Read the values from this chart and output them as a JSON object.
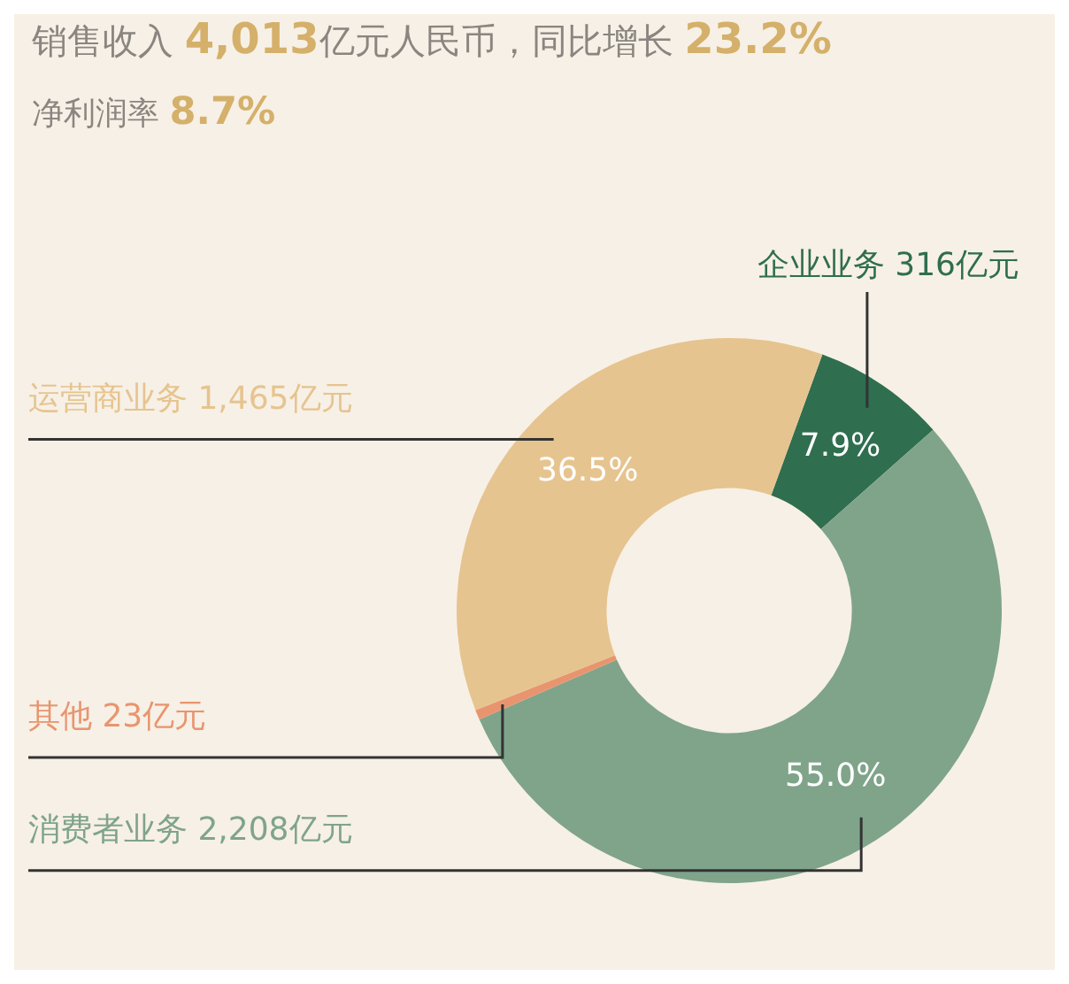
{
  "chart_data": {
    "type": "donut",
    "title": "销售收入 4,013亿元人民币，同比增长 23.2%",
    "subtitle": "净利润率 8.7%",
    "categories": [
      "企业业务 316亿元",
      "消费者业务 2,208亿元",
      "其他 23亿元",
      "运营商业务 1,465亿元"
    ],
    "values": [
      7.9,
      55.0,
      0.6,
      36.5
    ],
    "colors": [
      "#2f6e4f",
      "#7fa48a",
      "#e8956f",
      "#e6c48f"
    ],
    "value_labels": [
      "7.9%",
      "55.0%",
      null,
      "36.5%"
    ],
    "legend": false
  }
}
